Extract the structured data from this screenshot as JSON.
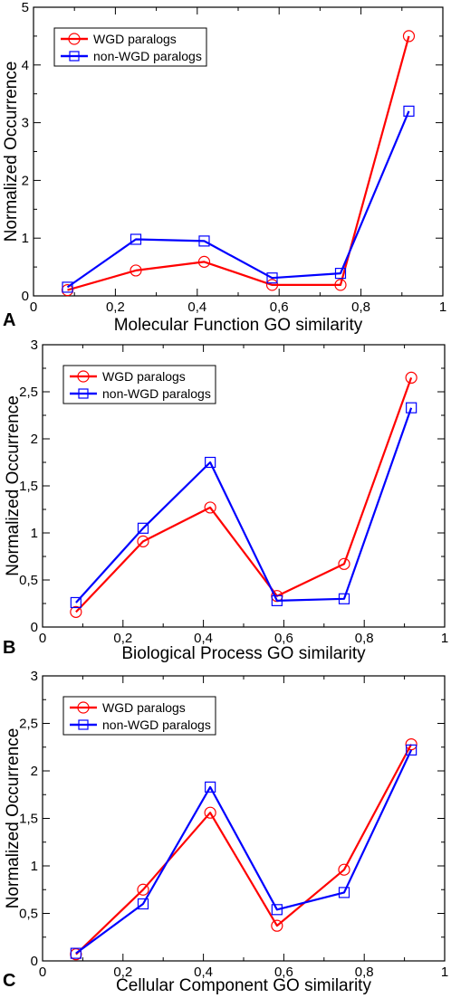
{
  "colors": {
    "wgd": "#ff0000",
    "nonwgd": "#0000ff"
  },
  "chart_data": [
    {
      "type": "line",
      "panel_label": "A",
      "xlabel": "Molecular Function GO similarity",
      "ylabel": "Normalized Occurrence",
      "xlim": [
        0,
        1
      ],
      "ylim": [
        0,
        5
      ],
      "x_ticks": [
        "0",
        "0,2",
        "0,4",
        "0,6",
        "0,8",
        "1"
      ],
      "y_ticks": [
        "0",
        "1",
        "2",
        "3",
        "4",
        "5"
      ],
      "legend_position": "top-left",
      "grid": false,
      "x": [
        0.083,
        0.25,
        0.417,
        0.583,
        0.75,
        0.917
      ],
      "series": [
        {
          "name": "WGD paralogs",
          "marker": "circle",
          "color": "#ff0000",
          "values": [
            0.1,
            0.44,
            0.59,
            0.19,
            0.19,
            4.5
          ]
        },
        {
          "name": "non-WGD paralogs",
          "marker": "square",
          "color": "#0000ff",
          "values": [
            0.15,
            0.98,
            0.95,
            0.31,
            0.39,
            3.2
          ]
        }
      ]
    },
    {
      "type": "line",
      "panel_label": "B",
      "xlabel": "Biological Process GO similarity",
      "ylabel": "Normalized Occurrence",
      "xlim": [
        0,
        1
      ],
      "ylim": [
        0,
        3
      ],
      "x_ticks": [
        "0",
        "0,2",
        "0,4",
        "0,6",
        "0,8",
        "1"
      ],
      "y_ticks": [
        "0",
        "0,5",
        "1",
        "1,5",
        "2",
        "2,5",
        "3"
      ],
      "legend_position": "top-left",
      "grid": false,
      "x": [
        0.083,
        0.25,
        0.417,
        0.583,
        0.75,
        0.917
      ],
      "series": [
        {
          "name": "WGD paralogs",
          "marker": "circle",
          "color": "#ff0000",
          "values": [
            0.16,
            0.91,
            1.27,
            0.33,
            0.67,
            2.65
          ]
        },
        {
          "name": "non-WGD paralogs",
          "marker": "square",
          "color": "#0000ff",
          "values": [
            0.26,
            1.05,
            1.75,
            0.28,
            0.3,
            2.33
          ]
        }
      ]
    },
    {
      "type": "line",
      "panel_label": "C",
      "xlabel": "Cellular Component GO similarity",
      "ylabel": "Normalized Occurrence",
      "xlim": [
        0,
        1
      ],
      "ylim": [
        0,
        3
      ],
      "x_ticks": [
        "0",
        "0,2",
        "0,4",
        "0,6",
        "0,8",
        "1"
      ],
      "y_ticks": [
        "0",
        "0,5",
        "1",
        "1,5",
        "2",
        "2,5",
        "3"
      ],
      "legend_position": "top-left",
      "grid": false,
      "x": [
        0.083,
        0.25,
        0.417,
        0.583,
        0.75,
        0.917
      ],
      "series": [
        {
          "name": "WGD paralogs",
          "marker": "circle",
          "color": "#ff0000",
          "values": [
            0.07,
            0.75,
            1.56,
            0.37,
            0.96,
            2.28
          ]
        },
        {
          "name": "non-WGD paralogs",
          "marker": "square",
          "color": "#0000ff",
          "values": [
            0.08,
            0.6,
            1.83,
            0.54,
            0.72,
            2.22
          ]
        }
      ]
    }
  ]
}
